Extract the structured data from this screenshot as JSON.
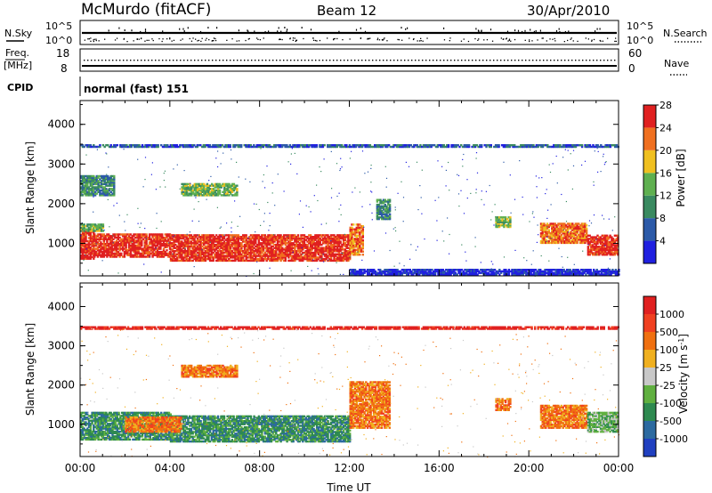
{
  "header": {
    "station": "McMurdo (fitACF)",
    "beam": "Beam 12",
    "date": "30/Apr/2010"
  },
  "status_panels": {
    "nsky_label": "N.Sky",
    "nsearch_label": "N.Search",
    "noise_ticks_left": [
      "10^5",
      "10^0"
    ],
    "noise_ticks_right": [
      "10^5",
      "10^0"
    ],
    "freq_label": "Freq.",
    "freq_unit": "[MHz]",
    "freq_ticks": [
      "18",
      "8"
    ],
    "nave_label": "Nave",
    "nave_ticks": [
      "60",
      "0"
    ],
    "cpid_label": "CPID",
    "cpid_value": "normal (fast) 151"
  },
  "chart_data": [
    {
      "type": "heatmap",
      "name": "power",
      "ylabel": "Slant Range [km]",
      "ylim": [
        180,
        4600
      ],
      "yticks": [
        "1000",
        "2000",
        "3000",
        "4000"
      ],
      "xlim": [
        0,
        24
      ],
      "colorbar": {
        "label": "Power [dB]",
        "ticks": [
          "4",
          "8",
          "12",
          "16",
          "20",
          "24",
          "28"
        ],
        "colors": [
          "#2020e0",
          "#2c5aa8",
          "#3a8a60",
          "#5fb050",
          "#f0c020",
          "#f07020",
          "#e02020"
        ]
      },
      "echo_regions": [
        {
          "t": [
            0.0,
            0.6
          ],
          "r": [
            600,
            1300
          ],
          "level": 6
        },
        {
          "t": [
            0.6,
            4.0
          ],
          "r": [
            650,
            1250
          ],
          "level": 6
        },
        {
          "t": [
            4.0,
            12.0
          ],
          "r": [
            550,
            1200
          ],
          "level": 6
        },
        {
          "t": [
            12.0,
            12.6
          ],
          "r": [
            700,
            1500
          ],
          "level": 5
        },
        {
          "t": [
            0.0,
            1.0
          ],
          "r": [
            1300,
            1500
          ],
          "level": 3
        },
        {
          "t": [
            0.0,
            1.5
          ],
          "r": [
            2200,
            2700
          ],
          "level": 2
        },
        {
          "t": [
            4.5,
            7.0
          ],
          "r": [
            2200,
            2500
          ],
          "level": 3
        },
        {
          "t": [
            13.2,
            13.8
          ],
          "r": [
            1600,
            2100
          ],
          "level": 2
        },
        {
          "t": [
            18.5,
            19.2
          ],
          "r": [
            1400,
            1650
          ],
          "level": 3
        },
        {
          "t": [
            20.5,
            22.6
          ],
          "r": [
            1000,
            1500
          ],
          "level": 5
        },
        {
          "t": [
            22.6,
            24.0
          ],
          "r": [
            700,
            1200
          ],
          "level": 6
        },
        {
          "t": [
            0.0,
            24.0
          ],
          "r": [
            3420,
            3470
          ],
          "level": 1
        },
        {
          "t": [
            12.0,
            24.0
          ],
          "r": [
            200,
            330
          ],
          "level": 0
        }
      ]
    },
    {
      "type": "heatmap",
      "name": "velocity",
      "ylabel": "Slant Range [km]",
      "ylim": [
        180,
        4600
      ],
      "yticks": [
        "1000",
        "2000",
        "3000",
        "4000"
      ],
      "xlim": [
        0,
        24
      ],
      "xticks": [
        "00:00",
        "04:00",
        "08:00",
        "12:00",
        "16:00",
        "20:00",
        "00:00"
      ],
      "xlabel": "Time UT",
      "colorbar": {
        "label": "Velocity [m s^-1]",
        "ticks": [
          "1000",
          "500",
          "100",
          "25",
          "-25",
          "-100",
          "-500",
          "-1000"
        ],
        "colors": [
          "#2040c0",
          "#2c6aa0",
          "#2e8a50",
          "#60b040",
          "#c8c8c8",
          "#f0b020",
          "#f07010",
          "#f04020",
          "#e02020"
        ]
      },
      "echo_regions": [
        {
          "t": [
            0.0,
            4.0
          ],
          "r": [
            600,
            1300
          ],
          "level": 2
        },
        {
          "t": [
            4.0,
            12.0
          ],
          "r": [
            550,
            1200
          ],
          "level": 2
        },
        {
          "t": [
            2.0,
            4.5
          ],
          "r": [
            800,
            1200
          ],
          "level": 6
        },
        {
          "t": [
            12.0,
            13.8
          ],
          "r": [
            900,
            2100
          ],
          "level": 6
        },
        {
          "t": [
            18.5,
            19.2
          ],
          "r": [
            1350,
            1650
          ],
          "level": 6
        },
        {
          "t": [
            20.5,
            22.6
          ],
          "r": [
            900,
            1500
          ],
          "level": 6
        },
        {
          "t": [
            22.6,
            24.0
          ],
          "r": [
            800,
            1300
          ],
          "level": 3
        },
        {
          "t": [
            4.5,
            7.0
          ],
          "r": [
            2200,
            2500
          ],
          "level": 6
        },
        {
          "t": [
            0.0,
            24.0
          ],
          "r": [
            3420,
            3470
          ],
          "level": 8
        }
      ]
    }
  ]
}
